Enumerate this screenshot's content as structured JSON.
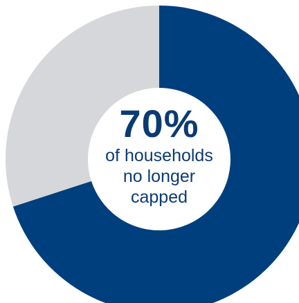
{
  "chart_data": {
    "type": "pie",
    "labels": [
      "no longer capped",
      "capped"
    ],
    "values": [
      70,
      30
    ],
    "colors": [
      "#003f7d",
      "#d6d7da"
    ],
    "donut": true,
    "center_text": {
      "value": "70%",
      "lines": [
        "of households",
        "no longer",
        "capped"
      ]
    }
  }
}
